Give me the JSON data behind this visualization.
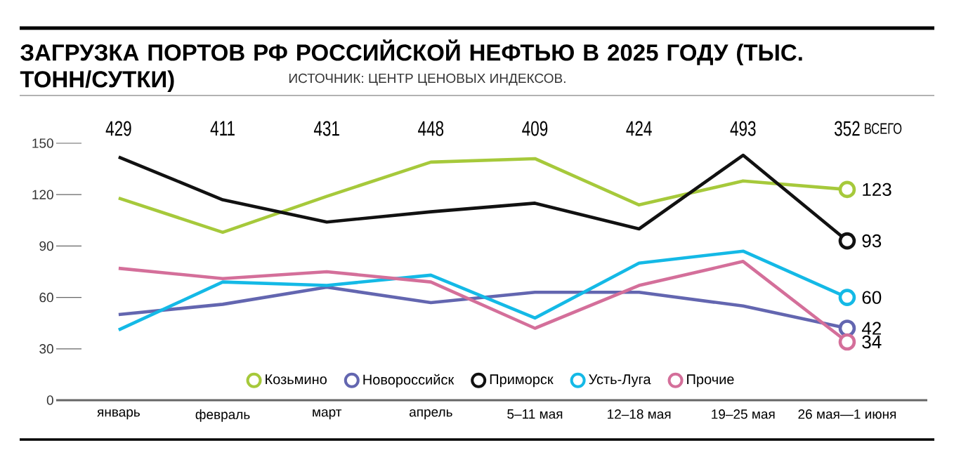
{
  "chart_data": {
    "type": "line",
    "title": "ЗАГРУЗКА ПОРТОВ РФ РОССИЙСКОЙ НЕФТЬЮ В 2025 ГОДУ (ТЫС. ТОНН/СУТКИ)",
    "subtitle": "ИСТОЧНИК: ЦЕНТР ЦЕНОВЫХ ИНДЕКСОВ.",
    "categories": [
      "январь",
      "февраль",
      "март",
      "апрель",
      "5–11 мая",
      "12–18 мая",
      "19–25 мая",
      "26 мая—1 июня"
    ],
    "series": [
      {
        "name": "Козьмино",
        "color": "#a6c93b",
        "values": [
          118,
          98,
          119,
          139,
          141,
          114,
          128,
          123
        ],
        "value_labels": [
          null,
          null,
          null,
          null,
          null,
          null,
          null,
          "123"
        ]
      },
      {
        "name": "Новороссийск",
        "color": "#6366b0",
        "values": [
          50,
          56,
          66,
          57,
          63,
          63,
          55,
          42
        ],
        "value_labels": [
          null,
          null,
          null,
          null,
          null,
          null,
          null,
          "42"
        ]
      },
      {
        "name": "Приморск",
        "color": "#111111",
        "values": [
          142,
          117,
          104,
          110,
          115,
          100,
          143,
          93
        ],
        "value_labels": [
          null,
          null,
          null,
          null,
          null,
          null,
          null,
          "93"
        ]
      },
      {
        "name": "Усть-Луга",
        "color": "#14b9e6",
        "values": [
          41,
          69,
          67,
          73,
          48,
          80,
          87,
          60
        ],
        "value_labels": [
          null,
          null,
          null,
          null,
          null,
          null,
          null,
          "60"
        ]
      },
      {
        "name": "Прочие",
        "color": "#d46f9a",
        "values": [
          77,
          71,
          75,
          69,
          42,
          67,
          81,
          34
        ],
        "value_labels": [
          null,
          null,
          null,
          null,
          null,
          null,
          null,
          "34"
        ]
      }
    ],
    "totals": [
      "429",
      "411",
      "431",
      "448",
      "409",
      "424",
      "493",
      "352"
    ],
    "annotations": [
      "ВСЕГО"
    ],
    "ylim": [
      0,
      150
    ],
    "yticks": [
      0,
      30,
      60,
      90,
      120,
      150
    ],
    "grid": false,
    "legend": "bottom",
    "line_style": "solid"
  }
}
